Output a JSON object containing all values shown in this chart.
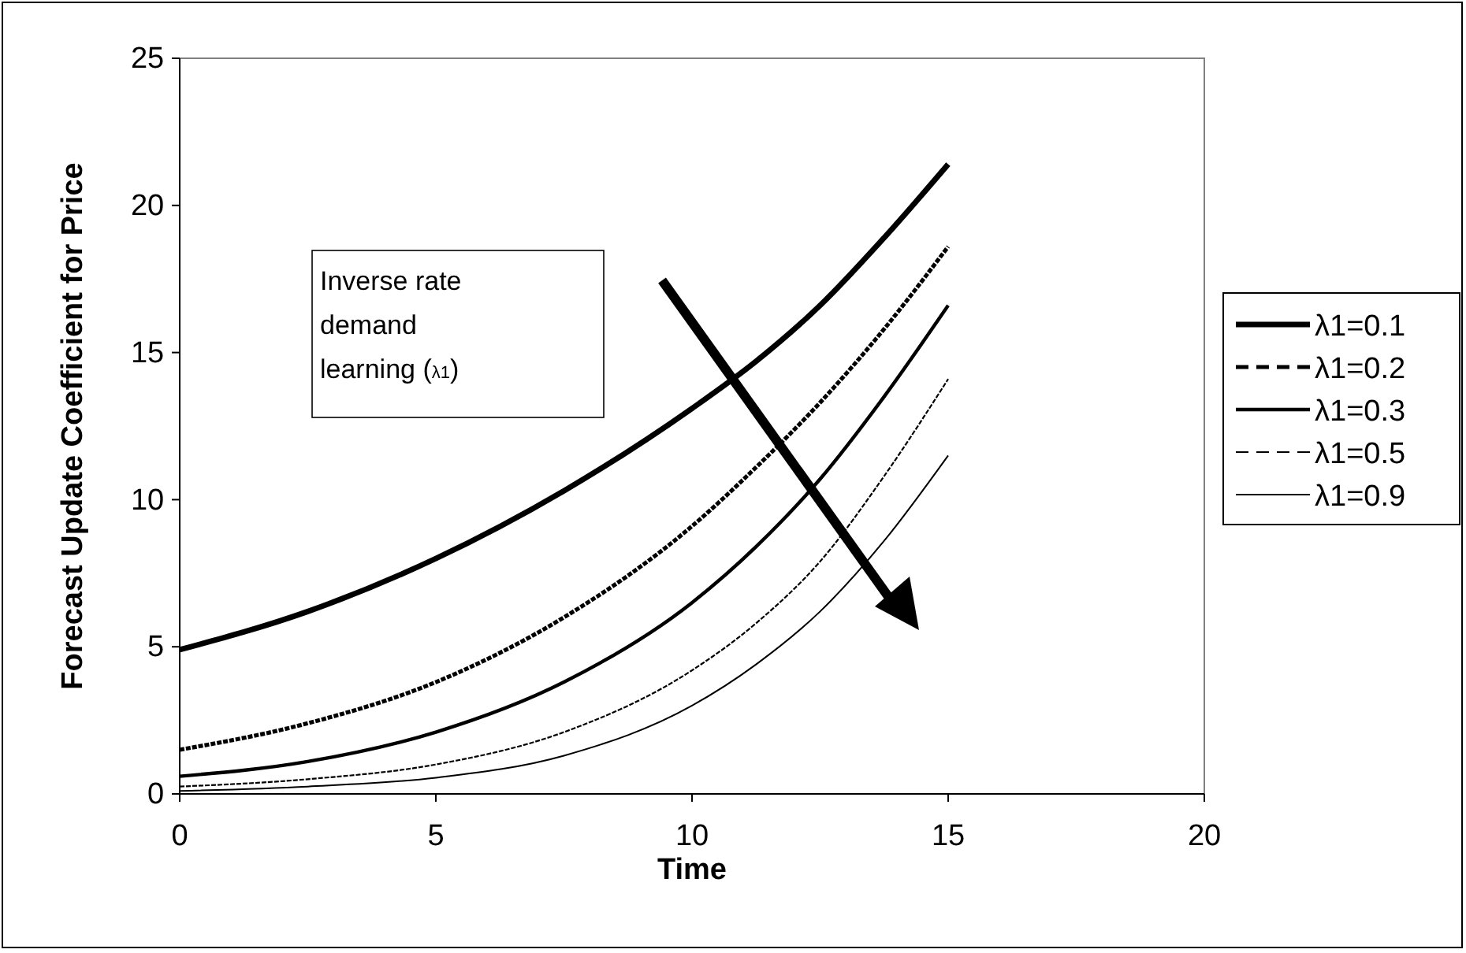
{
  "chart_data": {
    "type": "line",
    "xlabel": "Time",
    "ylabel": "Forecast Update Coefficient for  Price",
    "x": [
      0,
      2.5,
      5,
      7.5,
      10,
      11.25,
      12.5,
      13.75,
      15
    ],
    "series": [
      {
        "name": "λ1=0.1",
        "color": "#000000",
        "line_style": "solid",
        "values": [
          4.9,
          6.2,
          8.0,
          10.3,
          13.1,
          14.7,
          16.6,
          18.9,
          21.4
        ]
      },
      {
        "name": "λ1=0.2",
        "color": "#000000",
        "line_style": "dashed",
        "values": [
          1.5,
          2.4,
          3.8,
          6.0,
          9.1,
          11.1,
          13.3,
          15.8,
          18.6
        ]
      },
      {
        "name": "λ1=0.3",
        "color": "#000000",
        "line_style": "solid",
        "values": [
          0.6,
          1.1,
          2.1,
          3.8,
          6.5,
          8.4,
          10.7,
          13.5,
          16.6
        ]
      },
      {
        "name": "λ1=0.5",
        "color": "#000000",
        "line_style": "dashed",
        "values": [
          0.25,
          0.5,
          1.0,
          2.1,
          4.2,
          5.8,
          7.9,
          10.8,
          14.1
        ]
      },
      {
        "name": "λ1=0.9",
        "color": "#000000",
        "line_style": "solid",
        "values": [
          0.1,
          0.25,
          0.55,
          1.3,
          3.0,
          4.4,
          6.2,
          8.6,
          11.5
        ]
      }
    ],
    "annotations": [
      "Inverse rate demand learning (λ1)"
    ],
    "xlim": [
      0,
      20
    ],
    "xticks": [
      0,
      5,
      10,
      15,
      20
    ],
    "ylim": [
      0,
      25
    ],
    "yticks": [
      0,
      5,
      10,
      15,
      20,
      25
    ],
    "legend": "right",
    "marker": "none"
  }
}
